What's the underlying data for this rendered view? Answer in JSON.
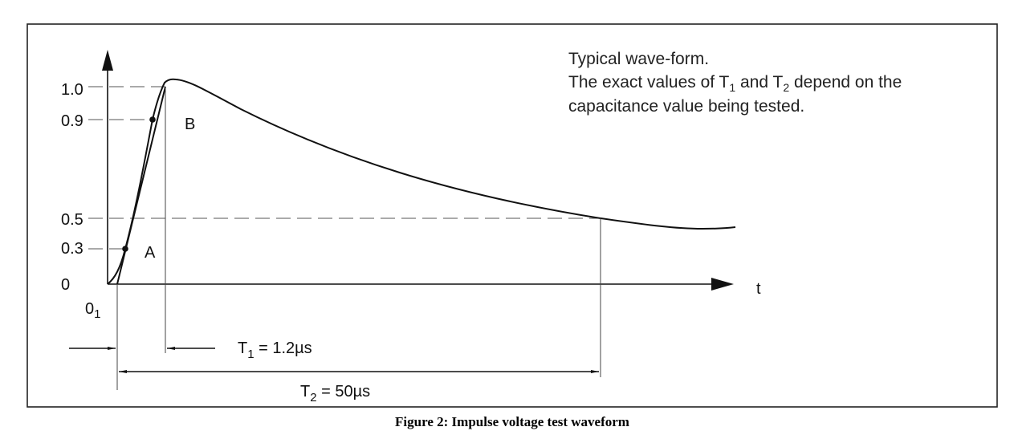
{
  "note": {
    "line1": "Typical wave-form.",
    "line2_pre": "The exact values of T",
    "line2_sub1": "1",
    "line2_mid": " and T",
    "line2_sub2": "2",
    "line2_post": " depend on the",
    "line3": "capacitance value being tested."
  },
  "y_ticks": {
    "t10": "1.0",
    "t09": "0.9",
    "t05": "0.5",
    "t03": "0.3",
    "t0": "0"
  },
  "origin": {
    "base": "0",
    "sub": "1"
  },
  "x_axis_label": "t",
  "points": {
    "a": "A",
    "b": "B"
  },
  "t1": {
    "base": "T",
    "sub": "1",
    "value": " = 1.2µs"
  },
  "t2": {
    "base": "T",
    "sub": "2",
    "value": " = 50µs"
  },
  "caption": "Figure 2: Impulse voltage test waveform"
}
